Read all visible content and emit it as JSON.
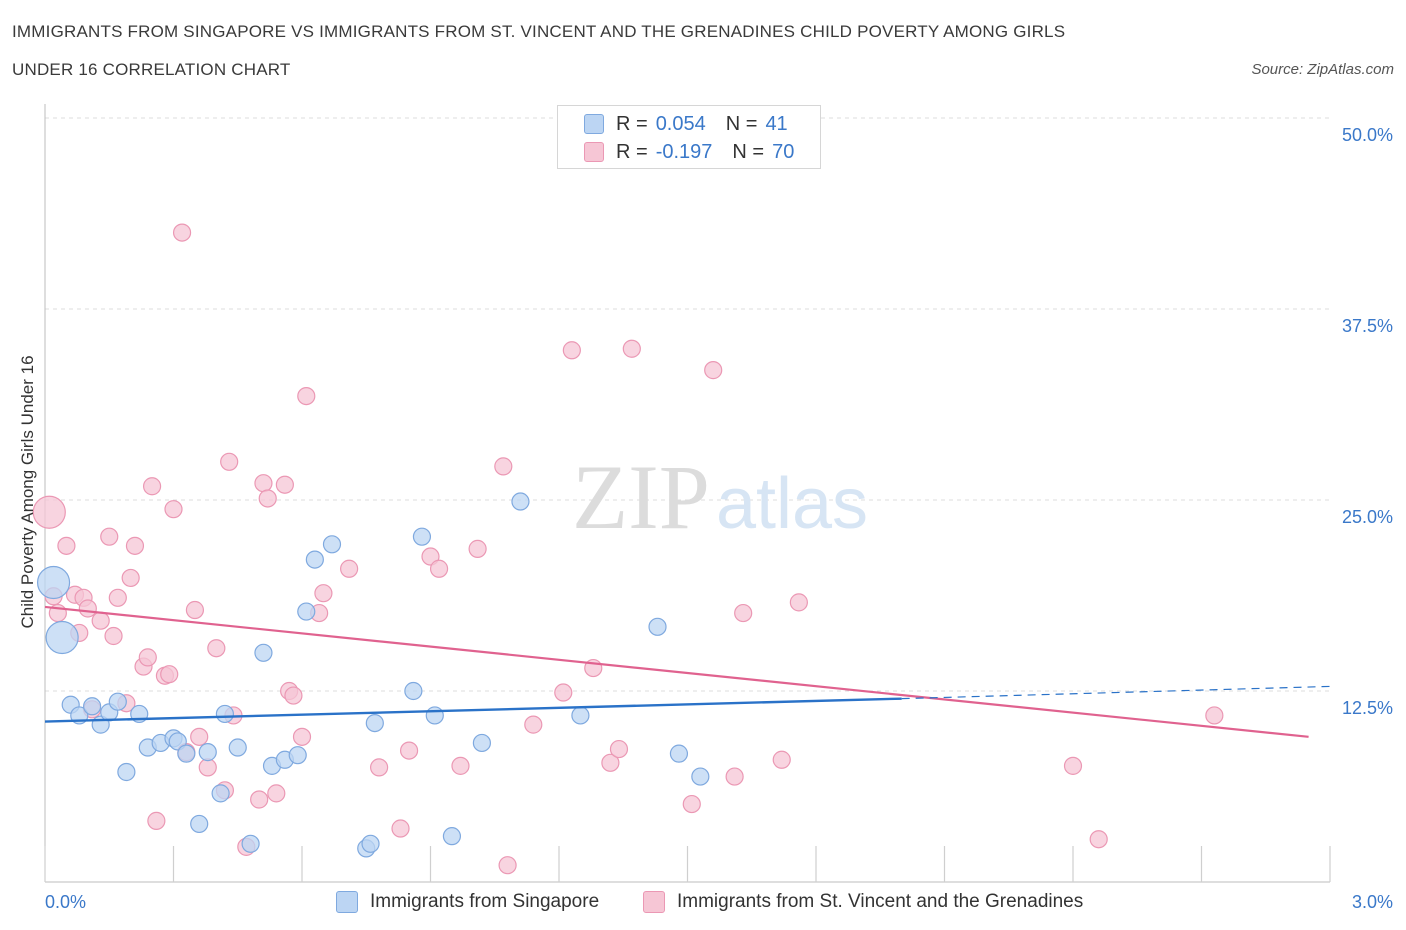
{
  "title_line1": "IMMIGRANTS FROM SINGAPORE VS IMMIGRANTS FROM ST. VINCENT AND THE GRENADINES CHILD POVERTY AMONG GIRLS",
  "title_line2": "UNDER 16 CORRELATION CHART",
  "source": "Source: ZipAtlas.com",
  "watermark": "ZIPatlas",
  "legend": {
    "r_label": "R =",
    "n_label": "N =",
    "series1": {
      "r": "0.054",
      "n": "41"
    },
    "series2": {
      "r": "-0.197",
      "n": "70"
    }
  },
  "colors": {
    "blue_fill": "#bcd5f3",
    "blue_stroke": "#7fa9df",
    "blue_line": "#2a72c8",
    "pink_fill": "#f6c6d5",
    "pink_stroke": "#eb98b4",
    "pink_line": "#e0628f",
    "tick_text": "#3a78c9",
    "grid": "#dddddd"
  },
  "chart_data": {
    "type": "scatter",
    "title": "IMMIGRANTS FROM SINGAPORE VS IMMIGRANTS FROM ST. VINCENT AND THE GRENADINES CHILD POVERTY AMONG GIRLS UNDER 16 CORRELATION CHART",
    "xlabel": "",
    "ylabel": "Child Poverty Among Girls Under 16",
    "xlim": [
      0,
      3.0
    ],
    "ylim": [
      0,
      50
    ],
    "x_tick_labels": [
      "0.0%",
      "3.0%"
    ],
    "y_ticks": [
      12.5,
      25.0,
      37.5,
      50.0
    ],
    "y_tick_labels": [
      "12.5%",
      "25.0%",
      "37.5%",
      "50.0%"
    ],
    "grid": true,
    "legend_position": "top-center",
    "series": [
      {
        "name": "Immigrants from Singapore",
        "r": 0.054,
        "n": 41,
        "trend": {
          "x": [
            0.0,
            2.0
          ],
          "y": [
            10.5,
            12.0
          ],
          "dashed_to": [
            3.0,
            12.8
          ]
        },
        "points": [
          {
            "x": 0.02,
            "y": 19.6,
            "big": true
          },
          {
            "x": 0.04,
            "y": 16.0,
            "big": true
          },
          {
            "x": 0.06,
            "y": 11.6
          },
          {
            "x": 0.08,
            "y": 10.9
          },
          {
            "x": 0.11,
            "y": 11.5
          },
          {
            "x": 0.13,
            "y": 10.3
          },
          {
            "x": 0.15,
            "y": 11.1
          },
          {
            "x": 0.17,
            "y": 11.8
          },
          {
            "x": 0.19,
            "y": 7.2
          },
          {
            "x": 0.22,
            "y": 11.0
          },
          {
            "x": 0.24,
            "y": 8.8
          },
          {
            "x": 0.27,
            "y": 9.1
          },
          {
            "x": 0.3,
            "y": 9.4
          },
          {
            "x": 0.31,
            "y": 9.2
          },
          {
            "x": 0.33,
            "y": 8.4
          },
          {
            "x": 0.36,
            "y": 3.8
          },
          {
            "x": 0.38,
            "y": 8.5
          },
          {
            "x": 0.41,
            "y": 5.8
          },
          {
            "x": 0.42,
            "y": 11.0
          },
          {
            "x": 0.45,
            "y": 8.8
          },
          {
            "x": 0.48,
            "y": 2.5
          },
          {
            "x": 0.51,
            "y": 15.0
          },
          {
            "x": 0.53,
            "y": 7.6
          },
          {
            "x": 0.56,
            "y": 8.0
          },
          {
            "x": 0.59,
            "y": 8.3
          },
          {
            "x": 0.61,
            "y": 17.7
          },
          {
            "x": 0.63,
            "y": 21.1
          },
          {
            "x": 0.67,
            "y": 22.1
          },
          {
            "x": 0.75,
            "y": 2.2
          },
          {
            "x": 0.76,
            "y": 2.5
          },
          {
            "x": 0.77,
            "y": 10.4
          },
          {
            "x": 0.86,
            "y": 12.5
          },
          {
            "x": 0.88,
            "y": 22.6
          },
          {
            "x": 0.91,
            "y": 10.9
          },
          {
            "x": 0.95,
            "y": 3.0
          },
          {
            "x": 1.02,
            "y": 9.1
          },
          {
            "x": 1.11,
            "y": 24.9
          },
          {
            "x": 1.25,
            "y": 10.9
          },
          {
            "x": 1.43,
            "y": 16.7
          },
          {
            "x": 1.48,
            "y": 8.4
          },
          {
            "x": 1.53,
            "y": 6.9
          }
        ]
      },
      {
        "name": "Immigrants from St. Vincent and the Grenadines",
        "r": -0.197,
        "n": 70,
        "trend": {
          "x": [
            0.0,
            2.95
          ],
          "y": [
            18.0,
            9.5
          ]
        },
        "points": [
          {
            "x": 0.01,
            "y": 24.2,
            "big": true
          },
          {
            "x": 0.02,
            "y": 18.7
          },
          {
            "x": 0.03,
            "y": 17.6
          },
          {
            "x": 0.05,
            "y": 22.0
          },
          {
            "x": 0.07,
            "y": 18.8
          },
          {
            "x": 0.08,
            "y": 16.3
          },
          {
            "x": 0.09,
            "y": 18.6
          },
          {
            "x": 0.1,
            "y": 17.9
          },
          {
            "x": 0.11,
            "y": 11.3
          },
          {
            "x": 0.13,
            "y": 17.1
          },
          {
            "x": 0.15,
            "y": 22.6
          },
          {
            "x": 0.16,
            "y": 16.1
          },
          {
            "x": 0.17,
            "y": 18.6
          },
          {
            "x": 0.19,
            "y": 11.7
          },
          {
            "x": 0.2,
            "y": 19.9
          },
          {
            "x": 0.21,
            "y": 22.0
          },
          {
            "x": 0.23,
            "y": 14.1
          },
          {
            "x": 0.24,
            "y": 14.7
          },
          {
            "x": 0.25,
            "y": 25.9
          },
          {
            "x": 0.26,
            "y": 4.0
          },
          {
            "x": 0.28,
            "y": 13.5
          },
          {
            "x": 0.29,
            "y": 13.6
          },
          {
            "x": 0.3,
            "y": 24.4
          },
          {
            "x": 0.32,
            "y": 42.5
          },
          {
            "x": 0.33,
            "y": 8.5
          },
          {
            "x": 0.35,
            "y": 17.8
          },
          {
            "x": 0.36,
            "y": 9.5
          },
          {
            "x": 0.38,
            "y": 7.5
          },
          {
            "x": 0.4,
            "y": 15.3
          },
          {
            "x": 0.42,
            "y": 6.0
          },
          {
            "x": 0.43,
            "y": 27.5
          },
          {
            "x": 0.44,
            "y": 10.9
          },
          {
            "x": 0.47,
            "y": 2.3
          },
          {
            "x": 0.5,
            "y": 5.4
          },
          {
            "x": 0.51,
            "y": 26.1
          },
          {
            "x": 0.52,
            "y": 25.1
          },
          {
            "x": 0.54,
            "y": 5.8
          },
          {
            "x": 0.56,
            "y": 26.0
          },
          {
            "x": 0.57,
            "y": 12.5
          },
          {
            "x": 0.58,
            "y": 12.2
          },
          {
            "x": 0.6,
            "y": 9.5
          },
          {
            "x": 0.61,
            "y": 31.8
          },
          {
            "x": 0.64,
            "y": 17.6
          },
          {
            "x": 0.65,
            "y": 18.9
          },
          {
            "x": 0.71,
            "y": 20.5
          },
          {
            "x": 0.78,
            "y": 7.5
          },
          {
            "x": 0.83,
            "y": 3.5
          },
          {
            "x": 0.85,
            "y": 8.6
          },
          {
            "x": 0.9,
            "y": 21.3
          },
          {
            "x": 0.92,
            "y": 20.5
          },
          {
            "x": 0.97,
            "y": 7.6
          },
          {
            "x": 1.01,
            "y": 21.8
          },
          {
            "x": 1.07,
            "y": 27.2
          },
          {
            "x": 1.08,
            "y": 1.1
          },
          {
            "x": 1.14,
            "y": 10.3
          },
          {
            "x": 1.21,
            "y": 12.4
          },
          {
            "x": 1.23,
            "y": 34.8
          },
          {
            "x": 1.28,
            "y": 14.0
          },
          {
            "x": 1.32,
            "y": 7.8
          },
          {
            "x": 1.34,
            "y": 8.7
          },
          {
            "x": 1.37,
            "y": 34.9
          },
          {
            "x": 1.51,
            "y": 5.1
          },
          {
            "x": 1.56,
            "y": 33.5
          },
          {
            "x": 1.61,
            "y": 6.9
          },
          {
            "x": 1.63,
            "y": 17.6
          },
          {
            "x": 1.72,
            "y": 8.0
          },
          {
            "x": 1.76,
            "y": 18.3
          },
          {
            "x": 2.4,
            "y": 7.6
          },
          {
            "x": 2.46,
            "y": 2.8
          },
          {
            "x": 2.73,
            "y": 10.9
          }
        ]
      }
    ]
  }
}
